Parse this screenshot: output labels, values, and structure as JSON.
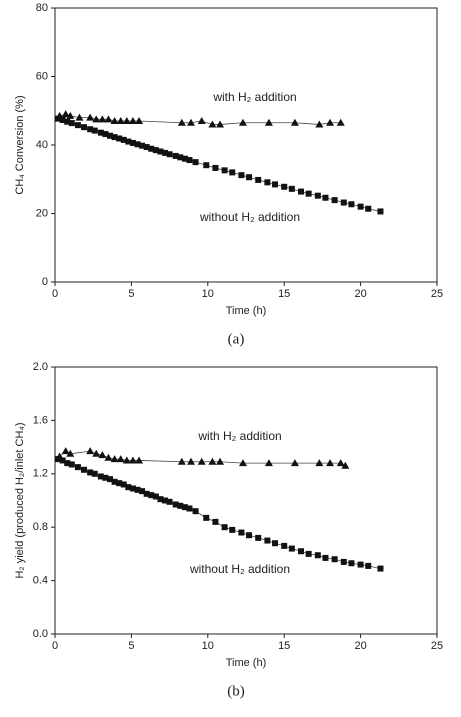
{
  "chart_data": [
    {
      "type": "scatter",
      "caption": "(a)",
      "x_label": "Time (h)",
      "y_label": "CH₄ Conversion (%)",
      "xlim": [
        0,
        25
      ],
      "xticks": [
        0,
        5,
        10,
        15,
        20,
        25
      ],
      "ylim": [
        0,
        80
      ],
      "yticks": [
        0,
        20,
        40,
        60,
        80
      ],
      "series": [
        {
          "name": "with H₂ addition",
          "marker": "triangle",
          "color": "#111",
          "x": [
            0.3,
            0.7,
            1.0,
            1.6,
            2.3,
            2.7,
            3.1,
            3.5,
            3.9,
            4.3,
            4.7,
            5.1,
            5.5,
            8.3,
            8.9,
            9.6,
            10.3,
            10.8,
            12.3,
            14.0,
            15.7,
            17.3,
            18.0,
            18.7
          ],
          "values": [
            48.5,
            49,
            48.5,
            48,
            48,
            47.5,
            47.5,
            47.5,
            47,
            47,
            47,
            47,
            47,
            46.5,
            46.5,
            47,
            46,
            46,
            46.5,
            46.5,
            46.5,
            46,
            46.5,
            46.5
          ]
        },
        {
          "name": "without H₂ addition",
          "marker": "square",
          "color": "#111",
          "x": [
            0.2,
            0.5,
            0.8,
            1.1,
            1.5,
            1.9,
            2.3,
            2.6,
            3.0,
            3.3,
            3.6,
            3.9,
            4.2,
            4.5,
            4.8,
            5.1,
            5.4,
            5.7,
            6.0,
            6.3,
            6.6,
            6.9,
            7.2,
            7.5,
            7.9,
            8.2,
            8.5,
            8.8,
            9.2,
            9.9,
            10.5,
            11.1,
            11.6,
            12.2,
            12.7,
            13.3,
            13.9,
            14.4,
            15.0,
            15.5,
            16.1,
            16.6,
            17.2,
            17.7,
            18.3,
            18.9,
            19.4,
            20.0,
            20.5,
            21.3
          ],
          "values": [
            47.7,
            47.3,
            46.8,
            46.4,
            45.8,
            45.2,
            44.6,
            44.2,
            43.6,
            43.2,
            42.7,
            42.3,
            41.9,
            41.5,
            41.0,
            40.6,
            40.2,
            39.8,
            39.4,
            38.9,
            38.5,
            38.1,
            37.7,
            37.3,
            36.8,
            36.4,
            36.0,
            35.6,
            35.0,
            34.1,
            33.3,
            32.6,
            32.0,
            31.2,
            30.6,
            29.8,
            29.1,
            28.5,
            27.8,
            27.2,
            26.4,
            25.8,
            25.2,
            24.6,
            23.9,
            23.2,
            22.7,
            22.0,
            21.4,
            20.6
          ]
        }
      ]
    },
    {
      "type": "scatter",
      "caption": "(b)",
      "x_label": "Time (h)",
      "y_label": "H₂ yield (produced H₂/inlet CH₄)",
      "xlim": [
        0,
        25
      ],
      "xticks": [
        0,
        5,
        10,
        15,
        20,
        25
      ],
      "ylim": [
        0,
        2
      ],
      "yticks": [
        {
          "value": 0,
          "label": "0.0"
        },
        0.4,
        0.8,
        1.2,
        1.6,
        {
          "value": 2,
          "label": "2.0"
        }
      ],
      "series": [
        {
          "name": "with H₂ addition",
          "marker": "triangle",
          "color": "#111",
          "x": [
            0.3,
            0.7,
            1.0,
            2.3,
            2.7,
            3.1,
            3.5,
            3.9,
            4.3,
            4.7,
            5.1,
            5.5,
            8.3,
            8.9,
            9.6,
            10.3,
            10.8,
            12.3,
            14.0,
            15.7,
            17.3,
            18.0,
            18.7,
            19.0
          ],
          "values": [
            1.33,
            1.37,
            1.35,
            1.37,
            1.35,
            1.34,
            1.32,
            1.31,
            1.31,
            1.3,
            1.3,
            1.3,
            1.29,
            1.29,
            1.29,
            1.29,
            1.29,
            1.28,
            1.28,
            1.28,
            1.28,
            1.28,
            1.28,
            1.26
          ]
        },
        {
          "name": "without H₂ addition",
          "marker": "square",
          "color": "#111",
          "x": [
            0.2,
            0.5,
            0.8,
            1.1,
            1.5,
            1.9,
            2.3,
            2.6,
            3.0,
            3.3,
            3.6,
            3.9,
            4.2,
            4.5,
            4.8,
            5.1,
            5.4,
            5.7,
            6.0,
            6.3,
            6.6,
            6.9,
            7.2,
            7.5,
            7.9,
            8.2,
            8.5,
            8.8,
            9.2,
            9.9,
            10.5,
            11.1,
            11.6,
            12.2,
            12.7,
            13.3,
            13.9,
            14.4,
            15.0,
            15.5,
            16.1,
            16.6,
            17.2,
            17.7,
            18.3,
            18.9,
            19.4,
            20.0,
            20.5,
            21.3
          ],
          "values": [
            1.31,
            1.3,
            1.28,
            1.27,
            1.25,
            1.23,
            1.21,
            1.2,
            1.18,
            1.17,
            1.16,
            1.14,
            1.13,
            1.12,
            1.1,
            1.09,
            1.08,
            1.07,
            1.05,
            1.04,
            1.03,
            1.01,
            1.0,
            0.99,
            0.97,
            0.96,
            0.95,
            0.94,
            0.92,
            0.87,
            0.84,
            0.8,
            0.78,
            0.76,
            0.74,
            0.72,
            0.7,
            0.68,
            0.66,
            0.64,
            0.62,
            0.6,
            0.59,
            0.57,
            0.56,
            0.54,
            0.53,
            0.52,
            0.51,
            0.49
          ]
        }
      ]
    }
  ]
}
